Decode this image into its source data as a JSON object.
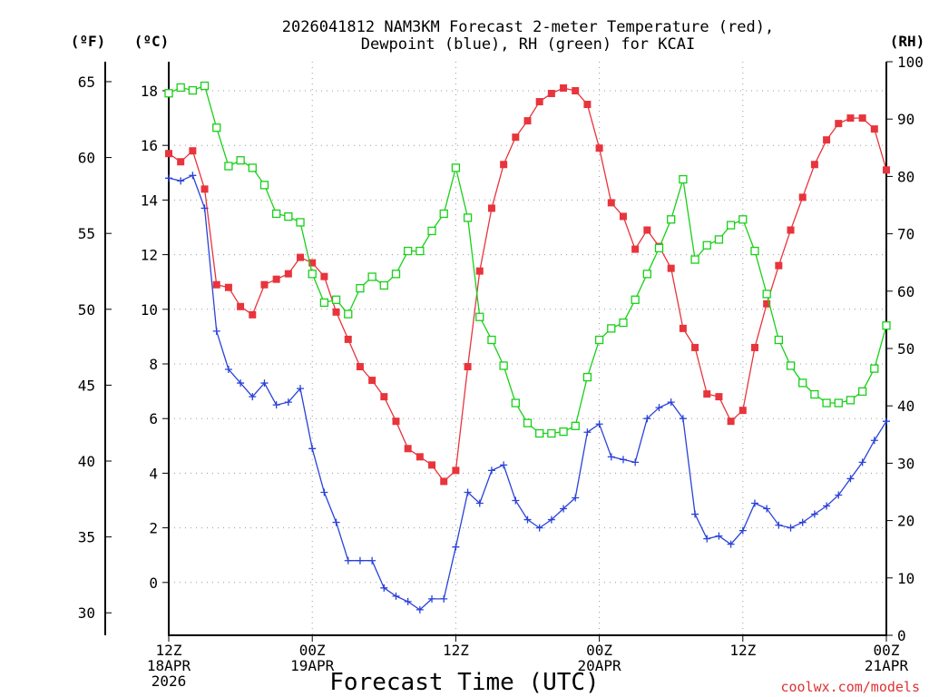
{
  "chart_data": {
    "type": "line",
    "title_line1": "2026041812 NAM3KM Forecast 2-meter Temperature (red),",
    "title_line2": "Dewpoint (blue), RH (green) for KCAI",
    "xlabel": "Forecast Time (UTC)",
    "credit": "coolwx.com/models",
    "units": {
      "f": "(ºF)",
      "c": "(ºC)",
      "rh": "(RH)"
    },
    "x_hours_range": [
      0,
      60
    ],
    "x_ticks": [
      {
        "hour": 0,
        "line1": "12Z",
        "line2": "18APR",
        "line3": "2026"
      },
      {
        "hour": 12,
        "line1": "00Z",
        "line2": "19APR",
        "line3": ""
      },
      {
        "hour": 24,
        "line1": "12Z",
        "line2": "",
        "line3": ""
      },
      {
        "hour": 36,
        "line1": "00Z",
        "line2": "20APR",
        "line3": ""
      },
      {
        "hour": 48,
        "line1": "12Z",
        "line2": "",
        "line3": ""
      },
      {
        "hour": 60,
        "line1": "00Z",
        "line2": "21APR",
        "line3": ""
      }
    ],
    "celsius_range": [
      -2,
      19
    ],
    "celsius_ticks": [
      "0",
      "2",
      "4",
      "6",
      "8",
      "10",
      "12",
      "14",
      "16",
      "18"
    ],
    "fahrenheit_ticks": [
      "30",
      "35",
      "40",
      "45",
      "50",
      "55",
      "60",
      "65"
    ],
    "rh_range": [
      0,
      100
    ],
    "rh_ticks": [
      "0",
      "10",
      "20",
      "30",
      "40",
      "50",
      "60",
      "70",
      "80",
      "90",
      "100"
    ],
    "series": [
      {
        "name": "2-meter Temperature",
        "color": "#e8343c",
        "marker": "filled-square",
        "axis": "celsius",
        "values": [
          15.7,
          15.4,
          15.8,
          14.4,
          10.9,
          10.8,
          10.1,
          9.8,
          10.9,
          11.1,
          11.3,
          11.9,
          11.7,
          11.2,
          9.9,
          8.9,
          7.9,
          7.4,
          6.8,
          5.9,
          4.9,
          4.6,
          4.3,
          3.7,
          4.1,
          7.9,
          11.4,
          13.7,
          15.3,
          16.3,
          16.9,
          17.6,
          17.9,
          18.1,
          18.0,
          17.5,
          15.9,
          13.9,
          13.4,
          12.2,
          12.9,
          12.3,
          11.5,
          9.3,
          8.6,
          6.9,
          6.8,
          5.9,
          6.3,
          8.6,
          10.2,
          11.6,
          12.9,
          14.1,
          15.3,
          16.2,
          16.8,
          17.0,
          17.0,
          16.6,
          15.1
        ]
      },
      {
        "name": "Dewpoint",
        "color": "#2a42d8",
        "marker": "plus",
        "axis": "celsius",
        "values": [
          14.8,
          14.7,
          14.9,
          13.7,
          9.2,
          7.8,
          7.3,
          6.8,
          7.3,
          6.5,
          6.6,
          7.1,
          4.9,
          3.3,
          2.2,
          0.8,
          0.8,
          0.8,
          -0.2,
          -0.5,
          -0.7,
          -1.0,
          -0.6,
          -0.6,
          1.3,
          3.3,
          2.9,
          4.1,
          4.3,
          3.0,
          2.3,
          2.0,
          2.3,
          2.7,
          3.1,
          5.5,
          5.8,
          4.6,
          4.5,
          4.4,
          6.0,
          6.4,
          6.6,
          6.0,
          2.5,
          1.6,
          1.7,
          1.4,
          1.9,
          2.9,
          2.7,
          2.1,
          2.0,
          2.2,
          2.5,
          2.8,
          3.2,
          3.8,
          4.4,
          5.2,
          5.9
        ]
      },
      {
        "name": "RH",
        "color": "#18d018",
        "marker": "open-square",
        "axis": "rh",
        "values": [
          94.5,
          95.5,
          95,
          95.8,
          88.5,
          81.8,
          82.8,
          81.5,
          78.5,
          73.5,
          73.0,
          72.0,
          63.0,
          58.0,
          58.5,
          56.0,
          60.5,
          62.5,
          61.0,
          63.0,
          67.0,
          67.0,
          70.5,
          73.5,
          81.5,
          72.8,
          55.5,
          51.5,
          47.0,
          40.5,
          37.0,
          35.2,
          35.2,
          35.5,
          36.5,
          45.0,
          51.5,
          53.5,
          54.5,
          58.5,
          63.0,
          67.5,
          72.5,
          79.5,
          65.5,
          68.0,
          69.0,
          71.5,
          72.5,
          67.0,
          59.5,
          51.5,
          47.0,
          44.0,
          42.0,
          40.5,
          40.5,
          41.0,
          42.5,
          46.5,
          54.0
        ]
      }
    ]
  }
}
